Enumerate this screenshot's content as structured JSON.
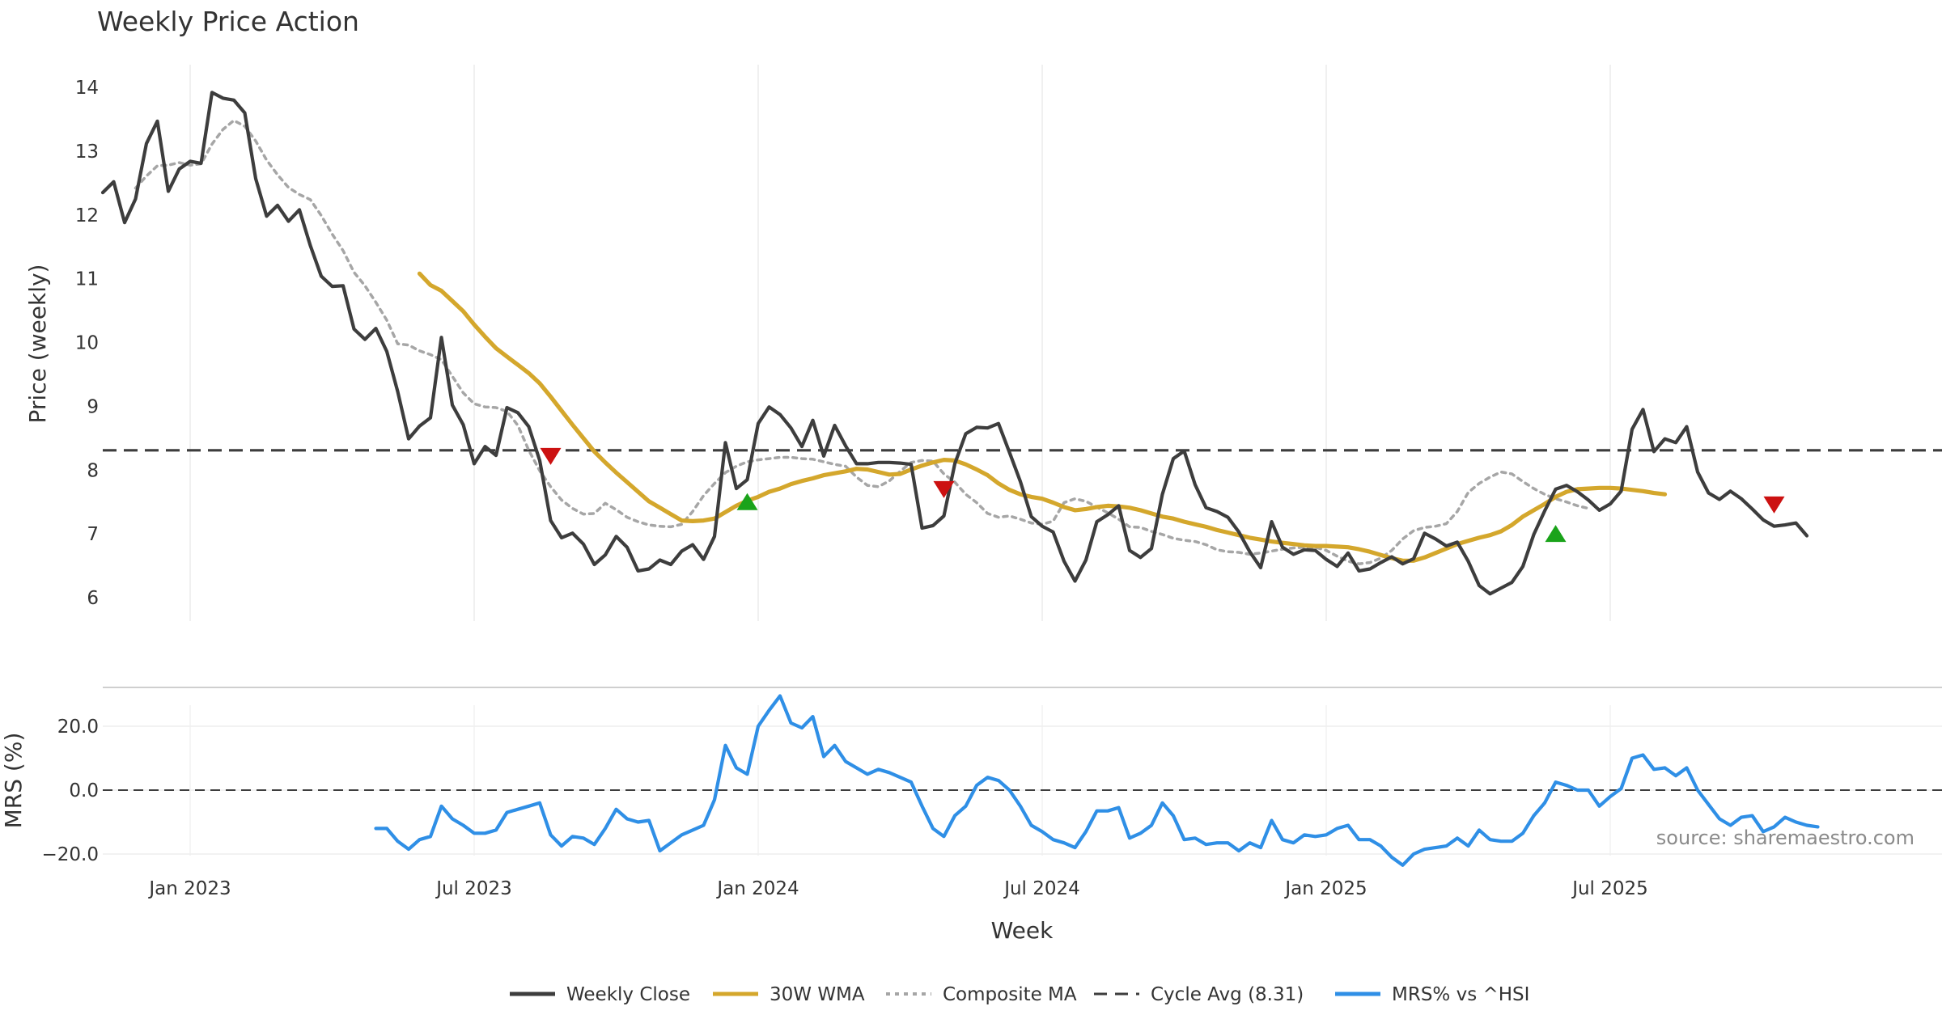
{
  "chart_data": {
    "type": "line",
    "title": "Weekly Price Action",
    "xlabel": "Week",
    "source": "source: sharemaestro.com",
    "x_ticks": [
      {
        "label": "Jan 2023",
        "week": 8
      },
      {
        "label": "Jul 2023",
        "week": 34
      },
      {
        "label": "Jan 2024",
        "week": 60
      },
      {
        "label": "Jul 2024",
        "week": 86
      },
      {
        "label": "Jan 2025",
        "week": 112
      },
      {
        "label": "Jul 2025",
        "week": 138
      }
    ],
    "price_panel": {
      "ylabel": "Price (weekly)",
      "ylim": [
        5.6,
        14.3
      ],
      "yticks": [
        "6",
        "7",
        "8",
        "9",
        "10",
        "11",
        "12",
        "13",
        "14"
      ],
      "series": [
        {
          "name": "Weekly Close",
          "color": "#3d3d3d",
          "start_week": 0,
          "values": [
            12.35,
            12.52,
            11.88,
            12.25,
            13.12,
            13.47,
            12.37,
            12.72,
            12.84,
            12.81,
            13.92,
            13.83,
            13.8,
            13.6,
            12.57,
            11.98,
            12.15,
            11.9,
            12.08,
            11.52,
            11.04,
            10.88,
            10.89,
            10.21,
            10.05,
            10.22,
            9.86,
            9.23,
            8.49,
            8.69,
            8.82,
            10.08,
            9.02,
            8.71,
            8.1,
            8.37,
            8.23,
            8.98,
            8.9,
            8.68,
            8.15,
            7.21,
            6.94,
            7.01,
            6.84,
            6.52,
            6.67,
            6.96,
            6.79,
            6.42,
            6.45,
            6.59,
            6.52,
            6.73,
            6.83,
            6.6,
            6.96,
            8.43,
            7.71,
            7.85,
            8.73,
            8.99,
            8.87,
            8.66,
            8.37,
            8.78,
            8.22,
            8.7,
            8.38,
            8.1,
            8.1,
            8.12,
            8.12,
            8.11,
            8.09,
            7.09,
            7.13,
            7.28,
            8.1,
            8.57,
            8.67,
            8.66,
            8.73,
            8.28,
            7.82,
            7.27,
            7.12,
            7.03,
            6.57,
            6.26,
            6.59,
            7.19,
            7.3,
            7.44,
            6.74,
            6.63,
            6.77,
            7.62,
            8.18,
            8.3,
            7.77,
            7.41,
            7.35,
            7.26,
            7.03,
            6.72,
            6.47,
            7.19,
            6.79,
            6.68,
            6.75,
            6.74,
            6.6,
            6.49,
            6.7,
            6.42,
            6.45,
            6.55,
            6.64,
            6.53,
            6.61,
            7.01,
            6.92,
            6.81,
            6.87,
            6.57,
            6.19,
            6.06,
            6.15,
            6.24,
            6.49,
            6.99,
            7.36,
            7.7,
            7.76,
            7.66,
            7.53,
            7.37,
            7.47,
            7.67,
            8.64,
            8.95,
            8.29,
            8.49,
            8.43,
            8.68,
            7.97,
            7.64,
            7.54,
            7.67,
            7.55,
            7.39,
            7.22,
            7.12,
            7.14,
            7.17,
            6.97
          ]
        },
        {
          "name": "30W WMA",
          "color": "#d4a72c",
          "start_week": 29,
          "values": [
            11.08,
            10.9,
            10.81,
            10.65,
            10.49,
            10.28,
            10.09,
            9.91,
            9.78,
            9.65,
            9.52,
            9.36,
            9.15,
            8.93,
            8.71,
            8.5,
            8.29,
            8.12,
            7.96,
            7.81,
            7.66,
            7.51,
            7.41,
            7.31,
            7.21,
            7.2,
            7.21,
            7.24,
            7.34,
            7.44,
            7.52,
            7.58,
            7.66,
            7.71,
            7.78,
            7.83,
            7.87,
            7.92,
            7.95,
            7.98,
            8.02,
            8.01,
            7.97,
            7.93,
            7.94,
            8.01,
            8.07,
            8.12,
            8.16,
            8.15,
            8.09,
            8.01,
            7.92,
            7.79,
            7.69,
            7.62,
            7.58,
            7.55,
            7.49,
            7.42,
            7.37,
            7.39,
            7.42,
            7.44,
            7.43,
            7.41,
            7.37,
            7.32,
            7.27,
            7.24,
            7.19,
            7.15,
            7.11,
            7.06,
            7.02,
            6.98,
            6.94,
            6.91,
            6.88,
            6.86,
            6.84,
            6.82,
            6.81,
            6.81,
            6.8,
            6.79,
            6.76,
            6.72,
            6.67,
            6.62,
            6.58,
            6.58,
            6.63,
            6.7,
            6.77,
            6.84,
            6.89,
            6.94,
            6.98,
            7.04,
            7.14,
            7.27,
            7.37,
            7.47,
            7.58,
            7.66,
            7.7,
            7.71,
            7.72,
            7.72,
            7.71,
            7.69,
            7.67,
            7.64,
            7.62
          ]
        },
        {
          "name": "Composite MA",
          "color": "#a6a6a6",
          "dashed": true,
          "start_week": 3,
          "values": [
            12.42,
            12.61,
            12.77,
            12.78,
            12.82,
            12.78,
            12.8,
            13.11,
            13.34,
            13.48,
            13.39,
            13.16,
            12.86,
            12.63,
            12.43,
            12.32,
            12.24,
            11.99,
            11.7,
            11.44,
            11.1,
            10.89,
            10.63,
            10.35,
            9.98,
            9.96,
            9.87,
            9.81,
            9.73,
            9.47,
            9.21,
            9.04,
            8.99,
            8.98,
            8.92,
            8.7,
            8.31,
            7.99,
            7.74,
            7.53,
            7.4,
            7.31,
            7.32,
            7.48,
            7.38,
            7.26,
            7.19,
            7.14,
            7.12,
            7.11,
            7.15,
            7.35,
            7.6,
            7.79,
            7.96,
            8.06,
            8.13,
            8.16,
            8.18,
            8.2,
            8.2,
            8.18,
            8.17,
            8.13,
            8.09,
            8.06,
            7.89,
            7.76,
            7.74,
            7.83,
            7.98,
            8.12,
            8.15,
            8.14,
            7.94,
            7.81,
            7.62,
            7.49,
            7.32,
            7.26,
            7.28,
            7.23,
            7.17,
            7.15,
            7.2,
            7.49,
            7.55,
            7.51,
            7.42,
            7.33,
            7.23,
            7.11,
            7.1,
            7.04,
            6.99,
            6.93,
            6.9,
            6.88,
            6.83,
            6.75,
            6.72,
            6.71,
            6.68,
            6.7,
            6.73,
            6.76,
            6.78,
            6.79,
            6.79,
            6.74,
            6.65,
            6.57,
            6.53,
            6.55,
            6.62,
            6.74,
            6.92,
            7.05,
            7.1,
            7.12,
            7.16,
            7.35,
            7.65,
            7.79,
            7.89,
            7.97,
            7.94,
            7.82,
            7.71,
            7.62,
            7.55,
            7.5,
            7.44,
            7.4
          ]
        }
      ],
      "hlines": [
        {
          "name": "Cycle Avg (8.31)",
          "value": 8.31,
          "color": "#3d3d3d",
          "dashed": true
        }
      ],
      "markers": [
        {
          "type": "sell",
          "week": 41,
          "value": 8.22
        },
        {
          "type": "buy",
          "week": 59,
          "value": 7.5
        },
        {
          "type": "sell",
          "week": 77,
          "value": 7.7
        },
        {
          "type": "buy",
          "week": 133,
          "value": 7.0
        },
        {
          "type": "sell",
          "week": 153,
          "value": 7.46
        }
      ],
      "marker_colors": {
        "buy": "#1aa31a",
        "sell": "#cc1111"
      }
    },
    "mrs_panel": {
      "ylabel": "MRS (%)",
      "ylim": [
        -22,
        33
      ],
      "yticks": [
        "20.0",
        "0.0",
        "−20.0"
      ],
      "ytick_values": [
        20,
        0,
        -20
      ],
      "series": [
        {
          "name": "MRS% vs ^HSI",
          "color": "#2f8fe6",
          "start_week": 25,
          "values": [
            -12,
            -12,
            -16,
            -18.5,
            -15.5,
            -14.5,
            -5,
            -9,
            -11,
            -13.5,
            -13.5,
            -12.5,
            -7,
            -6,
            -5,
            -4,
            -14,
            -17.5,
            -14.5,
            -15,
            -17,
            -12,
            -6,
            -9,
            -10,
            -9.5,
            -19,
            -16.5,
            -14,
            -12.5,
            -11,
            -3,
            14,
            7,
            5,
            20,
            25,
            29.5,
            21,
            19.5,
            23,
            10.5,
            14,
            9,
            7,
            5,
            6.5,
            5.5,
            4,
            2.5,
            -5,
            -12,
            -14.5,
            -8,
            -5,
            1.5,
            4,
            3,
            0,
            -5,
            -11,
            -13,
            -15.5,
            -16.5,
            -18,
            -13,
            -6.5,
            -6.5,
            -5.5,
            -15,
            -13.5,
            -11,
            -4,
            -8,
            -15.5,
            -15,
            -17,
            -16.5,
            -16.5,
            -19,
            -16.5,
            -18,
            -9.5,
            -15.5,
            -16.5,
            -14,
            -14.5,
            -14,
            -12,
            -11,
            -15.5,
            -15.5,
            -17.5,
            -21,
            -23.5,
            -20,
            -18.5,
            -18,
            -17.5,
            -15,
            -17.5,
            -12.5,
            -15.5,
            -16,
            -16,
            -13.5,
            -8,
            -4,
            2.5,
            1.5,
            0,
            0,
            -5,
            -2,
            0.5,
            10,
            11,
            6.5,
            7,
            4.5,
            7,
            0,
            -4.5,
            -9,
            -11,
            -8.5,
            -8,
            -13,
            -11.5,
            -8.5,
            -10,
            -11,
            -11.5
          ]
        }
      ],
      "hlines": [
        {
          "value": 0,
          "color": "#3d3d3d",
          "dashed": true
        }
      ]
    },
    "legend": [
      {
        "label": "Weekly Close",
        "color": "#3d3d3d",
        "style": "solid"
      },
      {
        "label": "30W WMA",
        "color": "#d4a72c",
        "style": "solid"
      },
      {
        "label": "Composite MA",
        "color": "#a6a6a6",
        "style": "dotted"
      },
      {
        "label": "Cycle Avg (8.31)",
        "color": "#3d3d3d",
        "style": "dashed"
      },
      {
        "label": "MRS% vs ^HSI",
        "color": "#2f8fe6",
        "style": "solid"
      }
    ],
    "legend_position": "bottom-center"
  }
}
